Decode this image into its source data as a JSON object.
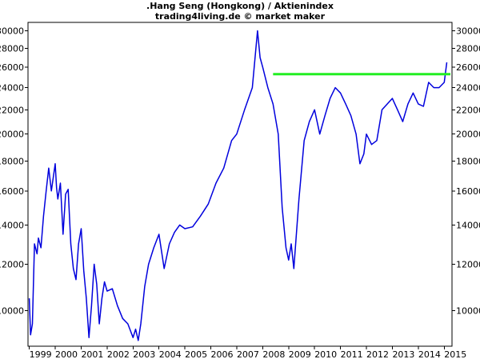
{
  "chart_data": {
    "type": "line",
    "title": ".Hang Seng (Hongkong) / Aktienindex",
    "subtitle": "trading4living.de © market maker",
    "xlabel": "",
    "ylabel": "",
    "y_scale": "log",
    "ylim": [
      8700,
      31000
    ],
    "xlim": [
      1998.95,
      2015.3
    ],
    "y_ticks": [
      10000,
      12000,
      14000,
      16000,
      18000,
      20000,
      22000,
      24000,
      26000,
      28000,
      30000
    ],
    "x_ticks": [
      1999,
      2000,
      2001,
      2002,
      2003,
      2004,
      2005,
      2006,
      2007,
      2008,
      2009,
      2010,
      2011,
      2012,
      2013,
      2014,
      2015
    ],
    "grid": false,
    "colors": {
      "series": "#0000dd",
      "resistance": "#22ee22"
    },
    "series": [
      {
        "x": [
          1999.0,
          1999.05,
          1999.12,
          1999.2,
          1999.3,
          1999.35,
          1999.45,
          1999.55,
          1999.65,
          1999.75,
          1999.85,
          2000.0,
          2000.05,
          2000.1,
          2000.2,
          2000.3,
          2000.4,
          2000.5,
          2000.6,
          2000.7,
          2000.8,
          2000.9,
          2001.0,
          2001.1,
          2001.2,
          2001.3,
          2001.4,
          2001.5,
          2001.6,
          2001.7,
          2001.8,
          2001.9,
          2002.0,
          2002.2,
          2002.4,
          2002.6,
          2002.8,
          2003.0,
          2003.1,
          2003.2,
          2003.3,
          2003.45,
          2003.6,
          2003.8,
          2004.0,
          2004.2,
          2004.4,
          2004.6,
          2004.8,
          2005.0,
          2005.3,
          2005.6,
          2005.9,
          2006.2,
          2006.5,
          2006.8,
          2007.0,
          2007.3,
          2007.6,
          2007.8,
          2007.9,
          2008.0,
          2008.2,
          2008.4,
          2008.6,
          2008.75,
          2008.9,
          2009.0,
          2009.1,
          2009.2,
          2009.4,
          2009.6,
          2009.8,
          2010.0,
          2010.2,
          2010.4,
          2010.6,
          2010.8,
          2011.0,
          2011.2,
          2011.4,
          2011.6,
          2011.75,
          2011.9,
          2012.0,
          2012.2,
          2012.4,
          2012.6,
          2012.8,
          2013.0,
          2013.2,
          2013.4,
          2013.6,
          2013.8,
          2014.0,
          2014.2,
          2014.4,
          2014.6,
          2014.8,
          2015.0,
          2015.1
        ],
        "values": [
          10500,
          9100,
          9500,
          13000,
          12500,
          13300,
          12800,
          14500,
          16000,
          17500,
          16000,
          17800,
          16200,
          15500,
          16500,
          13500,
          15800,
          16100,
          13000,
          11800,
          11300,
          13000,
          13800,
          11700,
          10500,
          9000,
          10200,
          12000,
          11100,
          9500,
          10500,
          11200,
          10800,
          10900,
          10200,
          9700,
          9500,
          9000,
          9300,
          8900,
          9500,
          11000,
          12000,
          12800,
          13500,
          11800,
          13000,
          13600,
          14000,
          13800,
          13900,
          14500,
          15200,
          16500,
          17500,
          19500,
          20000,
          22000,
          24000,
          30000,
          27000,
          26000,
          24000,
          22500,
          20000,
          15000,
          12800,
          12200,
          13000,
          11800,
          15500,
          19500,
          21000,
          22000,
          20000,
          21500,
          23000,
          24000,
          23500,
          22500,
          21500,
          20000,
          17800,
          18500,
          20000,
          19200,
          19500,
          22000,
          22500,
          23000,
          22000,
          21000,
          22500,
          23500,
          22500,
          22300,
          24500,
          24000,
          24000,
          24500,
          26500
        ]
      }
    ],
    "resistance_line": {
      "value": 25300,
      "x_start": 2008.4,
      "x_end": 2015.3
    }
  }
}
